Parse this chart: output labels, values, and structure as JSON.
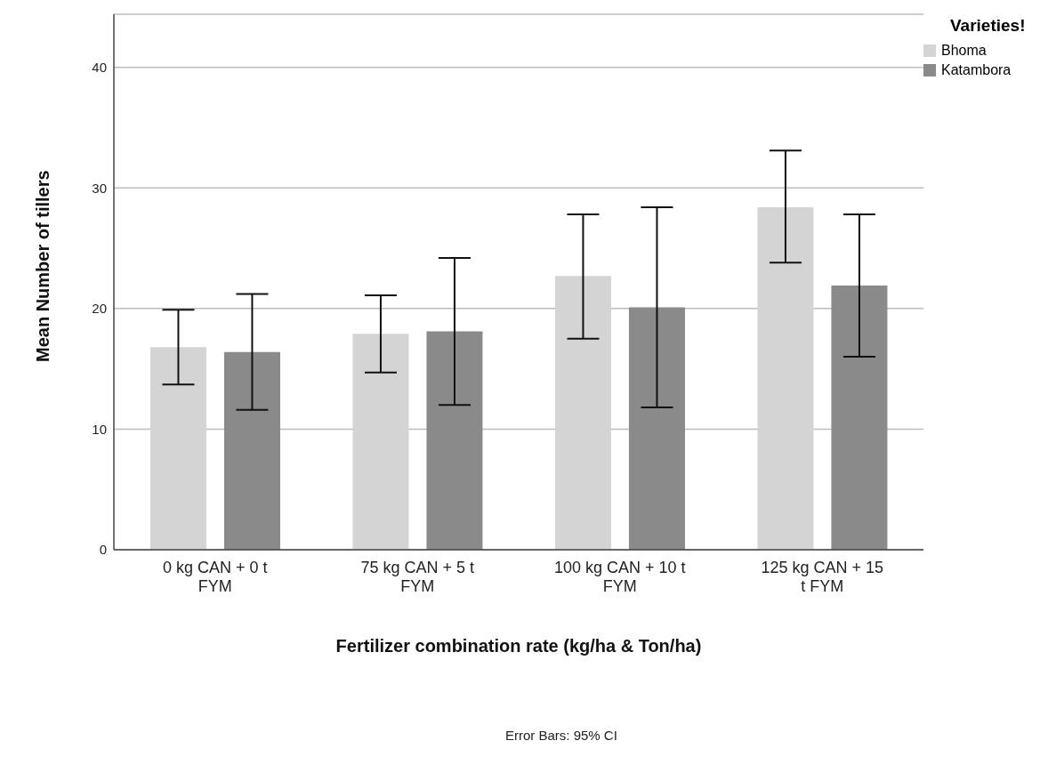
{
  "chart_data": {
    "type": "bar",
    "ylabel": "Mean Number of tillers",
    "xlabel": "Fertilizer combination rate (kg/ha & Ton/ha)",
    "legend_title": "Varieties!",
    "legend": "top right",
    "grid": "y",
    "categories": [
      "0 kg CAN + 0 t FYM",
      "75 kg CAN + 5 t FYM",
      "100 kg CAN + 10 t FYM",
      "125 kg CAN  + 15 t FYM"
    ],
    "series": [
      {
        "name": "Bhoma",
        "color": "#d4d4d4",
        "values": [
          16.8,
          17.9,
          22.7,
          28.4
        ],
        "errors": [
          [
            13.7,
            19.9
          ],
          [
            14.7,
            21.1
          ],
          [
            17.5,
            27.8
          ],
          [
            23.8,
            33.1
          ]
        ]
      },
      {
        "name": "Katambora",
        "color": "#8a8a8a",
        "values": [
          16.4,
          18.1,
          20.1,
          21.9
        ],
        "errors": [
          [
            11.6,
            21.2
          ],
          [
            12.0,
            24.2
          ],
          [
            11.8,
            28.4
          ],
          [
            16.0,
            27.8
          ]
        ]
      }
    ],
    "ylim": [
      0,
      44.4
    ],
    "yticks": [
      0,
      10,
      20,
      30,
      40
    ],
    "annotations": [
      "Error Bars: 95% CI"
    ]
  }
}
